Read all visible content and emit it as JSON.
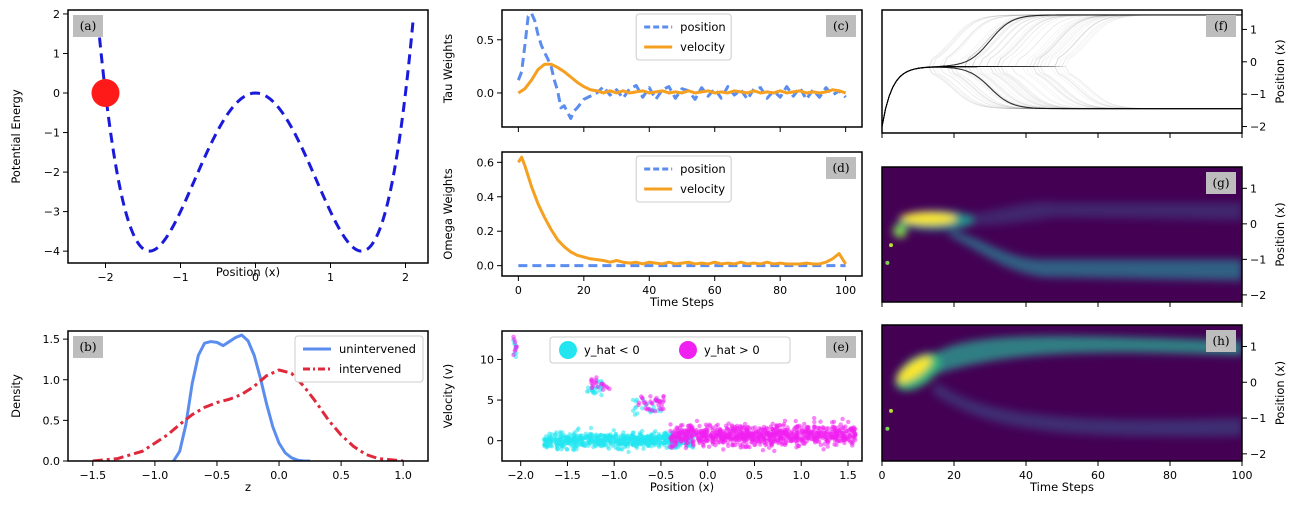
{
  "chart_data": [
    {
      "id": "a",
      "type": "line",
      "panel_label": "(a)",
      "xlabel": "Position (x)",
      "ylabel": "Potential Energy",
      "xlim": [
        -2.5,
        2.3
      ],
      "ylim": [
        -4.3,
        2.1
      ],
      "xticks": [
        -2,
        -1,
        0,
        1,
        2
      ],
      "yticks": [
        -4,
        -3,
        -2,
        -1,
        0,
        1,
        2
      ],
      "curve": {
        "formula": "x^4 - 4x^2",
        "x_range": [
          -2.1,
          2.1
        ],
        "color": "#1a1adb",
        "style": "dashed"
      },
      "marker": {
        "x": -2,
        "y": 0,
        "color": "#ff1a1a"
      }
    },
    {
      "id": "b",
      "type": "line",
      "panel_label": "(b)",
      "xlabel": "z",
      "ylabel": "Density",
      "xlim": [
        -1.7,
        1.2
      ],
      "ylim": [
        0,
        1.6
      ],
      "xticks": [
        -1.5,
        -1.0,
        -0.5,
        0.0,
        0.5,
        1.0
      ],
      "yticks": [
        0.0,
        0.5,
        1.0,
        1.5
      ],
      "legend_position": "top-right",
      "series": [
        {
          "name": "unintervened",
          "color": "#5b8def",
          "style": "solid",
          "x": [
            -0.85,
            -0.8,
            -0.75,
            -0.7,
            -0.65,
            -0.6,
            -0.55,
            -0.5,
            -0.45,
            -0.4,
            -0.35,
            -0.3,
            -0.25,
            -0.2,
            -0.15,
            -0.1,
            -0.05,
            0.0,
            0.05,
            0.1,
            0.15,
            0.2,
            0.25
          ],
          "y": [
            0.0,
            0.12,
            0.45,
            0.95,
            1.3,
            1.45,
            1.47,
            1.46,
            1.42,
            1.47,
            1.52,
            1.55,
            1.48,
            1.3,
            1.02,
            0.7,
            0.42,
            0.22,
            0.1,
            0.04,
            0.01,
            0.0,
            0.0
          ]
        },
        {
          "name": "intervened",
          "color": "#e0283c",
          "style": "dashdot",
          "x": [
            -1.5,
            -1.3,
            -1.1,
            -1.0,
            -0.9,
            -0.8,
            -0.7,
            -0.6,
            -0.5,
            -0.4,
            -0.3,
            -0.2,
            -0.1,
            0.0,
            0.1,
            0.2,
            0.3,
            0.4,
            0.5,
            0.6,
            0.7,
            0.8,
            1.0
          ],
          "y": [
            0.0,
            0.03,
            0.12,
            0.22,
            0.32,
            0.45,
            0.57,
            0.66,
            0.72,
            0.76,
            0.82,
            0.92,
            1.05,
            1.12,
            1.08,
            0.92,
            0.72,
            0.5,
            0.32,
            0.18,
            0.08,
            0.03,
            0.0
          ]
        }
      ]
    },
    {
      "id": "c",
      "type": "line",
      "panel_label": "(c)",
      "xlabel": "",
      "ylabel": "Tau Weights",
      "xlim": [
        -5,
        105
      ],
      "ylim": [
        -0.32,
        0.78
      ],
      "xticks": [
        0,
        20,
        40,
        60,
        80,
        100
      ],
      "show_xtick_labels": false,
      "yticks": [
        0.0,
        0.5
      ],
      "legend_position": "top-center",
      "series": [
        {
          "name": "position",
          "color": "#5b8def",
          "style": "dashed",
          "x": [
            0,
            1,
            2,
            3,
            4,
            5,
            6,
            7,
            8,
            9,
            10,
            11,
            12,
            13,
            14,
            15,
            16,
            17,
            18,
            19,
            20,
            22,
            24,
            26,
            28,
            30,
            32,
            34,
            36,
            38,
            40,
            42,
            44,
            46,
            48,
            50,
            52,
            54,
            56,
            58,
            60,
            62,
            64,
            66,
            68,
            70,
            72,
            74,
            76,
            78,
            80,
            82,
            84,
            86,
            88,
            90,
            92,
            94,
            96,
            98,
            100
          ],
          "y": [
            0.12,
            0.2,
            0.45,
            0.72,
            0.75,
            0.68,
            0.55,
            0.45,
            0.38,
            0.32,
            0.25,
            0.12,
            0.02,
            -0.14,
            -0.12,
            -0.18,
            -0.24,
            -0.17,
            -0.14,
            -0.1,
            -0.06,
            -0.03,
            0.0,
            0.06,
            -0.02,
            0.03,
            -0.05,
            0.04,
            0.07,
            -0.04,
            0.05,
            -0.06,
            0.03,
            0.06,
            -0.05,
            0.04,
            0.02,
            -0.06,
            0.05,
            -0.03,
            0.04,
            -0.05,
            0.06,
            -0.02,
            0.03,
            -0.06,
            0.04,
            0.05,
            -0.05,
            0.02,
            -0.04,
            0.06,
            -0.03,
            0.05,
            -0.06,
            0.03,
            -0.04,
            0.05,
            -0.02,
            0.02,
            -0.04
          ]
        },
        {
          "name": "velocity",
          "color": "#f5a020",
          "style": "solid",
          "x": [
            0,
            2,
            4,
            6,
            8,
            10,
            12,
            14,
            16,
            18,
            20,
            22,
            24,
            26,
            28,
            30,
            32,
            34,
            36,
            38,
            40,
            42,
            44,
            46,
            48,
            50,
            52,
            54,
            56,
            58,
            60,
            62,
            64,
            66,
            68,
            70,
            72,
            74,
            76,
            78,
            80,
            82,
            84,
            86,
            88,
            90,
            92,
            94,
            96,
            98,
            100
          ],
          "y": [
            0.0,
            0.04,
            0.12,
            0.22,
            0.27,
            0.27,
            0.24,
            0.2,
            0.15,
            0.1,
            0.06,
            0.03,
            0.02,
            0.0,
            0.02,
            0.0,
            0.02,
            0.0,
            0.01,
            0.02,
            0.0,
            0.01,
            0.02,
            0.0,
            0.01,
            0.0,
            0.02,
            0.0,
            0.01,
            0.02,
            0.0,
            0.01,
            0.0,
            0.02,
            0.01,
            0.0,
            0.02,
            0.0,
            0.01,
            0.0,
            0.02,
            0.0,
            0.01,
            0.02,
            0.0,
            0.01,
            0.0,
            0.01,
            0.03,
            0.02,
            0.0
          ]
        }
      ]
    },
    {
      "id": "d",
      "type": "line",
      "panel_label": "(d)",
      "xlabel": "Time Steps",
      "ylabel": "Omega Weights",
      "xlim": [
        -5,
        105
      ],
      "ylim": [
        -0.06,
        0.66
      ],
      "xticks": [
        0,
        20,
        40,
        60,
        80,
        100
      ],
      "yticks": [
        0.0,
        0.2,
        0.4,
        0.6
      ],
      "legend_position": "top-center",
      "series": [
        {
          "name": "position",
          "color": "#5b8def",
          "style": "dashed",
          "x": [
            0,
            100
          ],
          "y": [
            0.0,
            0.0
          ]
        },
        {
          "name": "velocity",
          "color": "#f5a020",
          "style": "solid",
          "x": [
            0,
            1,
            2,
            3,
            4,
            6,
            8,
            10,
            12,
            14,
            16,
            18,
            20,
            22,
            24,
            26,
            28,
            30,
            32,
            34,
            36,
            38,
            40,
            42,
            44,
            46,
            48,
            50,
            52,
            54,
            56,
            58,
            60,
            62,
            64,
            66,
            68,
            70,
            72,
            74,
            76,
            78,
            80,
            82,
            84,
            86,
            88,
            90,
            92,
            94,
            96,
            98,
            100
          ],
          "y": [
            0.6,
            0.63,
            0.58,
            0.52,
            0.46,
            0.36,
            0.28,
            0.21,
            0.15,
            0.11,
            0.08,
            0.06,
            0.05,
            0.04,
            0.035,
            0.03,
            0.02,
            0.03,
            0.02,
            0.015,
            0.02,
            0.01,
            0.02,
            0.015,
            0.01,
            0.02,
            0.01,
            0.015,
            0.02,
            0.01,
            0.015,
            0.01,
            0.02,
            0.01,
            0.015,
            0.01,
            0.02,
            0.01,
            0.015,
            0.01,
            0.02,
            0.01,
            0.015,
            0.01,
            0.01,
            0.01,
            0.015,
            0.01,
            0.01,
            0.02,
            0.04,
            0.07,
            0.01
          ]
        }
      ]
    },
    {
      "id": "e",
      "type": "scatter",
      "panel_label": "(e)",
      "xlabel": "Position (x)",
      "ylabel": "Velocity (v)",
      "xlim": [
        -2.2,
        1.65
      ],
      "ylim": [
        -2.5,
        13.5
      ],
      "xticks": [
        -2.0,
        -1.5,
        -1.0,
        -0.5,
        0.0,
        0.5,
        1.0,
        1.5
      ],
      "yticks": [
        0,
        5,
        10
      ],
      "legend_position": "top",
      "series": [
        {
          "name": "y_hat < 0",
          "color": "#22e5f0",
          "clusters": [
            {
              "x_range": [
                -2.08,
                -2.04
              ],
              "y_range": [
                10.2,
                12.6
              ],
              "count": 10
            },
            {
              "x_range": [
                -1.3,
                -1.12
              ],
              "y_range": [
                5.5,
                7.5
              ],
              "count": 25
            },
            {
              "x_range": [
                -0.8,
                -0.5
              ],
              "y_range": [
                3.2,
                5.2
              ],
              "count": 25
            },
            {
              "x_range": [
                -1.75,
                -0.15
              ],
              "y_range": [
                -1.1,
                1.2
              ],
              "count": 700
            }
          ]
        },
        {
          "name": "y_hat > 0",
          "color": "#f020f0",
          "clusters": [
            {
              "x_range": [
                -2.08,
                -2.04
              ],
              "y_range": [
                10.5,
                12.8
              ],
              "count": 8
            },
            {
              "x_range": [
                -1.25,
                -1.05
              ],
              "y_range": [
                6.0,
                7.8
              ],
              "count": 20
            },
            {
              "x_range": [
                -0.75,
                -0.45
              ],
              "y_range": [
                3.5,
                5.5
              ],
              "count": 35
            },
            {
              "x_range": [
                -0.4,
                1.58
              ],
              "y_range": [
                -0.9,
                2.2
              ],
              "count": 900
            }
          ]
        }
      ]
    },
    {
      "id": "f",
      "type": "line",
      "panel_label": "(f)",
      "xlabel": "",
      "ylabel": "Position (x)",
      "xlim": [
        0,
        100
      ],
      "ylim": [
        -2.2,
        1.6
      ],
      "xticks": [
        0,
        20,
        40,
        60,
        80,
        100
      ],
      "show_xtick_labels": false,
      "yticks": [
        -2,
        -1,
        0,
        1
      ],
      "y_axis_side": "right",
      "description_series": {
        "start": -2,
        "plateau": -0.15,
        "upper_end": 1.45,
        "lower_end": -1.45,
        "color": "#000000"
      }
    },
    {
      "id": "g",
      "type": "heatmap",
      "panel_label": "(g)",
      "xlabel": "",
      "ylabel": "Position (x)",
      "xlim": [
        0,
        100
      ],
      "ylim": [
        -2.2,
        1.6
      ],
      "xticks": [
        0,
        20,
        40,
        60,
        80,
        100
      ],
      "show_xtick_labels": false,
      "yticks": [
        -2,
        -1,
        0,
        1
      ],
      "y_axis_side": "right",
      "colormap": "viridis"
    },
    {
      "id": "h",
      "type": "heatmap",
      "panel_label": "(h)",
      "xlabel": "Time Steps",
      "ylabel": "Position (x)",
      "xlim": [
        0,
        100
      ],
      "ylim": [
        -2.2,
        1.6
      ],
      "xticks": [
        0,
        20,
        40,
        60,
        80,
        100
      ],
      "yticks": [
        -2,
        -1,
        0,
        1
      ],
      "y_axis_side": "right",
      "colormap": "viridis"
    }
  ]
}
